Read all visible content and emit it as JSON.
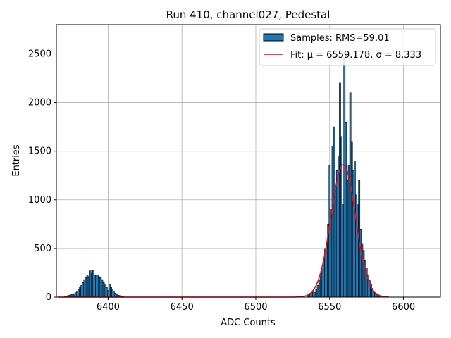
{
  "chart_data": {
    "type": "bar",
    "title": "Run 410, channel027, Pedestal",
    "xlabel": "ADC Counts",
    "ylabel": "Entries",
    "xlim": [
      6365,
      6625
    ],
    "ylim": [
      0,
      2800
    ],
    "xticks": [
      6400,
      6450,
      6500,
      6550,
      6600
    ],
    "yticks": [
      0,
      500,
      1000,
      1500,
      2000,
      2500
    ],
    "grid": true,
    "legend_position": "top-right",
    "colors": {
      "bar_fill": "#1f77b4",
      "bar_edge": "#000000",
      "fit_line": "#ff0000",
      "grid": "#b0b0b0"
    },
    "legend": {
      "samples_label": "Samples: RMS=59.01",
      "fit_label": "Fit: μ = 6559.178, σ = 8.333"
    },
    "histogram": {
      "name": "Samples: RMS=59.01",
      "bin_width": 1,
      "bins": [
        [
          6371,
          8
        ],
        [
          6372,
          12
        ],
        [
          6373,
          15
        ],
        [
          6374,
          20
        ],
        [
          6375,
          25
        ],
        [
          6376,
          30
        ],
        [
          6377,
          35
        ],
        [
          6378,
          45
        ],
        [
          6379,
          60
        ],
        [
          6380,
          80
        ],
        [
          6381,
          100
        ],
        [
          6382,
          120
        ],
        [
          6383,
          150
        ],
        [
          6384,
          180
        ],
        [
          6385,
          200
        ],
        [
          6386,
          220
        ],
        [
          6387,
          210
        ],
        [
          6388,
          270
        ],
        [
          6389,
          250
        ],
        [
          6390,
          275
        ],
        [
          6391,
          230
        ],
        [
          6392,
          225
        ],
        [
          6393,
          220
        ],
        [
          6394,
          210
        ],
        [
          6395,
          200
        ],
        [
          6396,
          180
        ],
        [
          6397,
          150
        ],
        [
          6398,
          125
        ],
        [
          6399,
          100
        ],
        [
          6400,
          70
        ],
        [
          6401,
          130
        ],
        [
          6402,
          100
        ],
        [
          6403,
          75
        ],
        [
          6404,
          60
        ],
        [
          6405,
          40
        ],
        [
          6406,
          30
        ],
        [
          6407,
          20
        ],
        [
          6408,
          15
        ],
        [
          6409,
          10
        ],
        [
          6410,
          5
        ],
        [
          6535,
          10
        ],
        [
          6536,
          20
        ],
        [
          6537,
          40
        ],
        [
          6538,
          60
        ],
        [
          6539,
          70
        ],
        [
          6540,
          50
        ],
        [
          6541,
          80
        ],
        [
          6542,
          120
        ],
        [
          6543,
          180
        ],
        [
          6544,
          250
        ],
        [
          6545,
          300
        ],
        [
          6546,
          400
        ],
        [
          6547,
          500
        ],
        [
          6548,
          550
        ],
        [
          6549,
          750
        ],
        [
          6550,
          1350
        ],
        [
          6551,
          900
        ],
        [
          6552,
          1550
        ],
        [
          6553,
          1750
        ],
        [
          6554,
          1100
        ],
        [
          6555,
          1300
        ],
        [
          6556,
          1450
        ],
        [
          6557,
          2200
        ],
        [
          6558,
          1650
        ],
        [
          6559,
          950
        ],
        [
          6560,
          2450
        ],
        [
          6561,
          1800
        ],
        [
          6562,
          1200
        ],
        [
          6563,
          1350
        ],
        [
          6564,
          2100
        ],
        [
          6565,
          1600
        ],
        [
          6566,
          1300
        ],
        [
          6567,
          1400
        ],
        [
          6568,
          1050
        ],
        [
          6569,
          950
        ],
        [
          6570,
          1200
        ],
        [
          6571,
          700
        ],
        [
          6572,
          550
        ],
        [
          6573,
          480
        ],
        [
          6574,
          380
        ],
        [
          6575,
          300
        ],
        [
          6576,
          230
        ],
        [
          6577,
          170
        ],
        [
          6578,
          130
        ],
        [
          6579,
          90
        ],
        [
          6580,
          60
        ],
        [
          6581,
          40
        ],
        [
          6582,
          25
        ],
        [
          6583,
          15
        ],
        [
          6584,
          10
        ]
      ]
    },
    "fit": {
      "name": "Fit: μ = 6559.178, σ = 8.333",
      "type": "gaussian",
      "mu": 6559.178,
      "sigma": 8.333,
      "amplitude": 1360,
      "x_range": [
        6366,
        6590
      ]
    }
  }
}
